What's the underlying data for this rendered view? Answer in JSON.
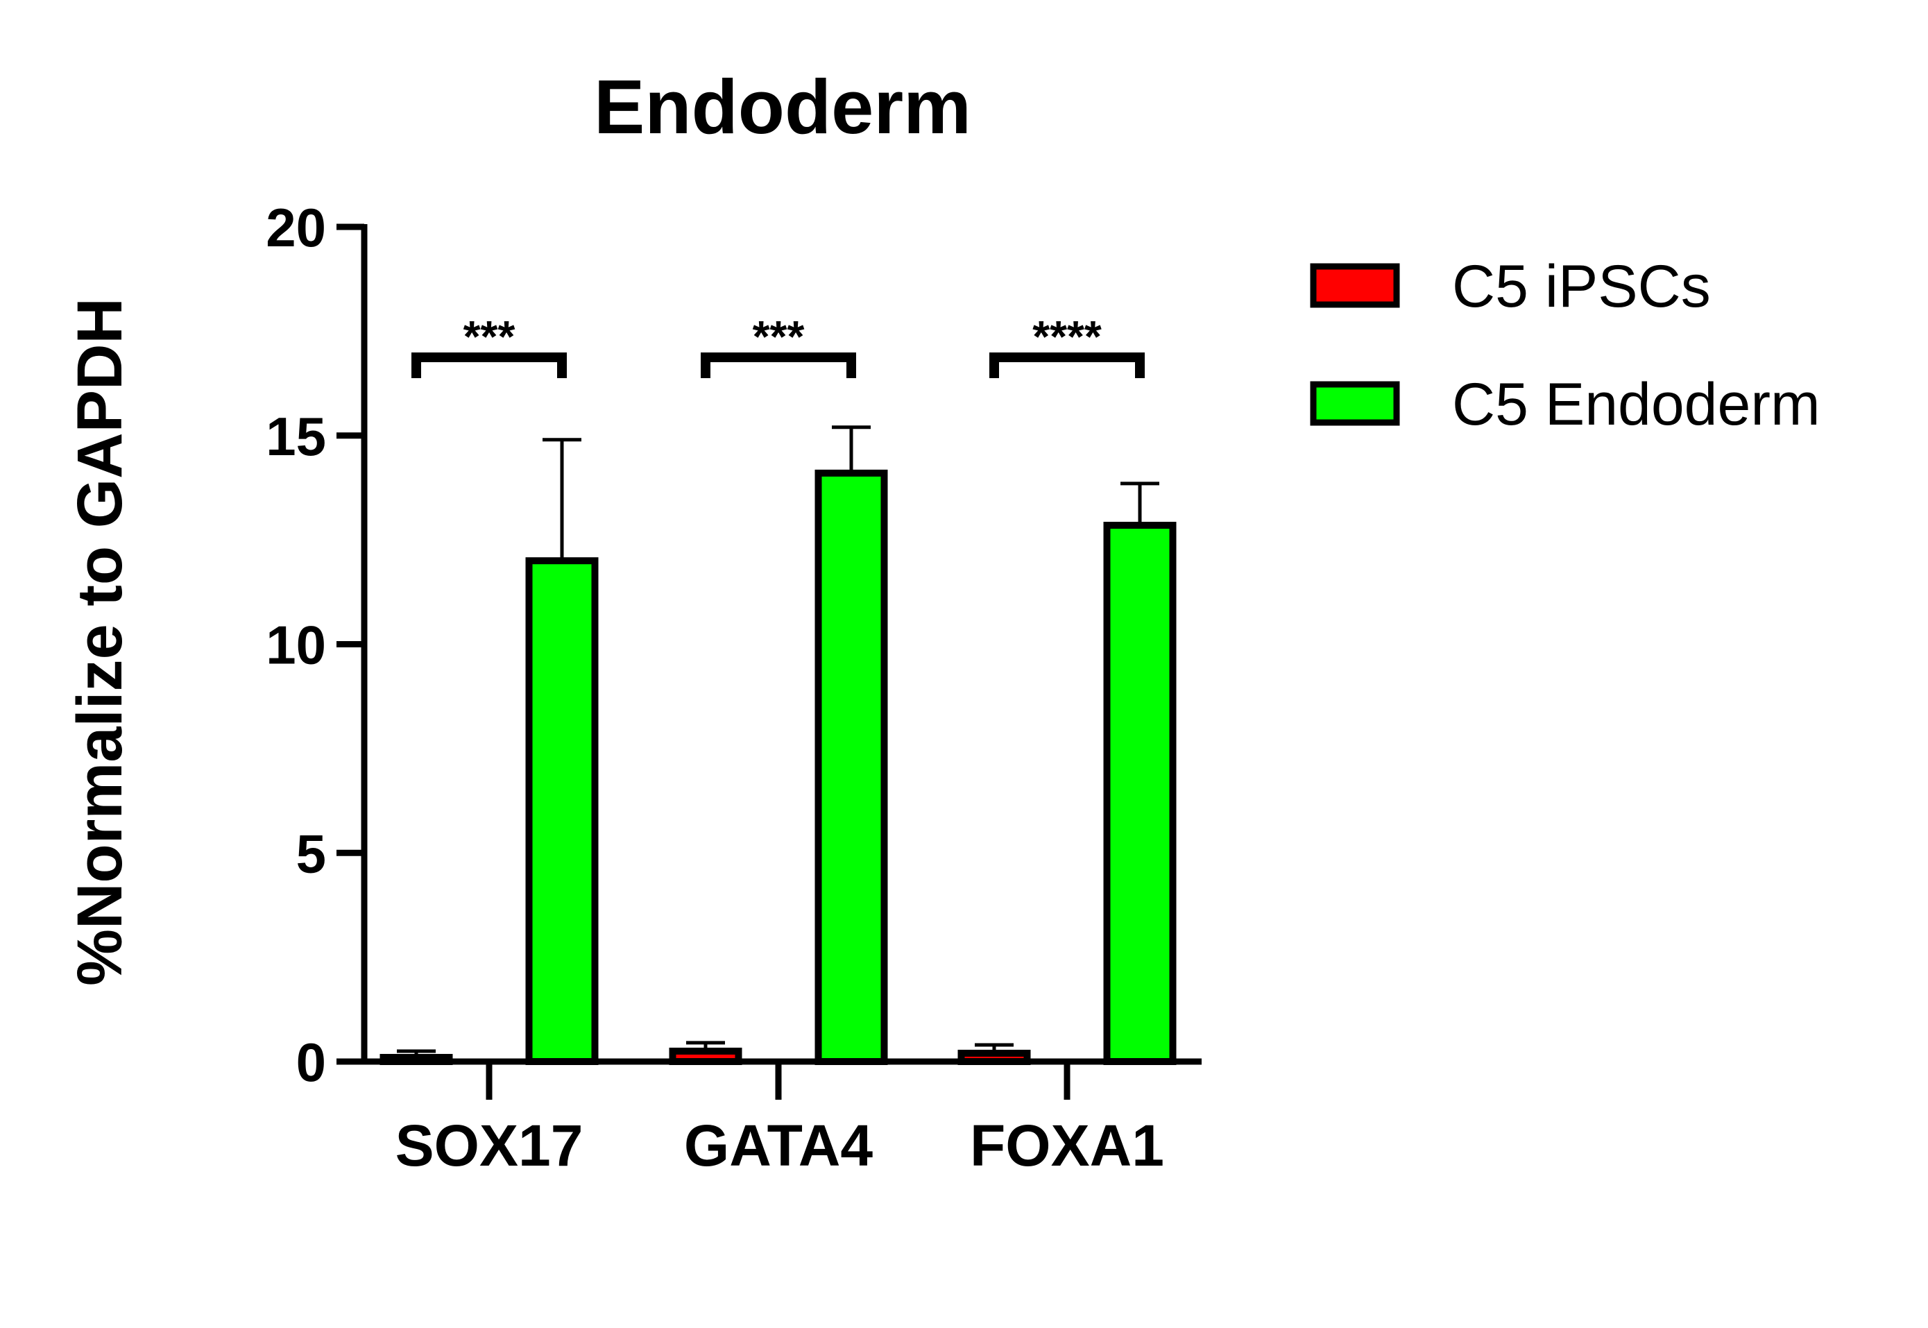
{
  "chart_data": {
    "type": "bar",
    "title": "Endoderm",
    "xlabel": "",
    "ylabel": "%Normalize to GAPDH",
    "ylim": [
      0,
      20
    ],
    "yticks": [
      0,
      5,
      10,
      15,
      20
    ],
    "categories": [
      "SOX17",
      "GATA4",
      "FOXA1"
    ],
    "series": [
      {
        "name": "C5 iPSCs",
        "color": "#ff0000",
        "values": [
          0.1,
          0.25,
          0.2
        ],
        "errors": [
          0.15,
          0.2,
          0.2
        ]
      },
      {
        "name": "C5 Endoderm",
        "color": "#00ff00",
        "values": [
          12.0,
          14.1,
          12.85
        ],
        "errors": [
          2.9,
          1.1,
          1.0
        ]
      }
    ],
    "significance": [
      "***",
      "***",
      "****"
    ],
    "legend": "top-right",
    "grid": false
  }
}
